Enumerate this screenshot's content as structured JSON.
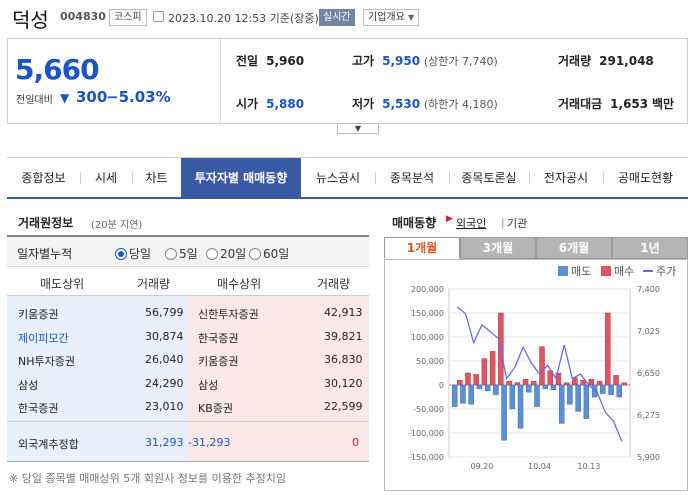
{
  "header": {
    "name": "덕성",
    "code": "004830",
    "market": "코스피",
    "datetime": "2023.10.20 12:53  기준(장중)",
    "realtime": "실시간",
    "summary": "기업개요"
  },
  "quote": {
    "price": "5,660",
    "change_label": "전일대비",
    "change": "300",
    "change_pct": "−5.03%",
    "prev_close": {
      "label": "전일",
      "value": "5,960"
    },
    "open": {
      "label": "시가",
      "value": "5,880"
    },
    "high": {
      "label": "고가",
      "value": "5,950",
      "limit": "(상한가 7,740)"
    },
    "low": {
      "label": "저가",
      "value": "5,530",
      "limit": "(하한가 4,180)"
    },
    "volume": {
      "label": "거래량",
      "value": "291,048"
    },
    "amount": {
      "label": "거래대금",
      "value": "1,653",
      "unit": "백만"
    }
  },
  "tabs": [
    "종합정보",
    "시세",
    "차트",
    "투자자별 매매동향",
    "뉴스공시",
    "종목분석",
    "종목토론실",
    "전자공시",
    "공매도현황"
  ],
  "broker": {
    "title": "거래원정보",
    "delay": "(20분 지연)",
    "cumulative_label": "일자별누적",
    "periods": [
      "당일",
      "5일",
      "20일",
      "60일"
    ],
    "selected_period": "당일",
    "headers": [
      "매도상위",
      "거래량",
      "매수상위",
      "거래량"
    ],
    "rows": [
      {
        "seller": "키움증권",
        "sell_vol": "56,799",
        "buyer": "신한투자증권",
        "buy_vol": "42,913"
      },
      {
        "seller": "제이피모간",
        "sell_vol": "30,874",
        "buyer": "한국증권",
        "buy_vol": "39,821"
      },
      {
        "seller": "NH투자증권",
        "sell_vol": "26,040",
        "buyer": "키움증권",
        "buy_vol": "36,830"
      },
      {
        "seller": "삼성",
        "sell_vol": "24,290",
        "buyer": "삼성",
        "buy_vol": "30,120"
      },
      {
        "seller": "한국증권",
        "sell_vol": "23,010",
        "buyer": "KB증권",
        "buy_vol": "22,599"
      }
    ],
    "foreign": {
      "label": "외국계추정합",
      "sell": "31,293",
      "net": "-31,293",
      "buy": "0"
    },
    "footnote": "※ 당일 종목별 매매상위 5개 회원사 정보를 이용한 추정치임"
  },
  "trading": {
    "title": "매매동향",
    "filters": [
      "외국인",
      "기관"
    ],
    "selected_filter": "외국인",
    "periods": [
      "1개월",
      "3개월",
      "6개월",
      "1년"
    ],
    "selected_period": "1개월",
    "legend": [
      "매도",
      "매수",
      "주가"
    ]
  },
  "colors": {
    "accent": "#3a5aa5",
    "down": "#1a55c8",
    "up": "#d8232a",
    "sell_bar": "#5b8fd6",
    "buy_bar": "#e0555f",
    "price_line": "#6b6bea"
  },
  "chart_data": {
    "type": "bar",
    "title": "",
    "x_ticks": [
      "09.20",
      "10.04",
      "10.13"
    ],
    "y_left": {
      "ticks": [
        "200,000",
        "150,000",
        "100,000",
        "50,000",
        "0",
        "-50,000",
        "-100,000",
        "-150,000"
      ],
      "range": [
        -150000,
        200000
      ]
    },
    "y_right": {
      "ticks": [
        "7,400",
        "7,025",
        "6,650",
        "6,275",
        "5,900"
      ],
      "range": [
        5900,
        7400
      ]
    },
    "series": [
      {
        "name": "매도",
        "values": [
          -45000,
          -38000,
          -40000,
          -8000,
          -12000,
          -20000,
          -115000,
          -50000,
          -90000,
          -15000,
          -45000,
          -8000,
          -10000,
          -80000,
          -40000,
          -55000,
          -70000,
          -25000,
          -18000,
          -20000,
          -25000
        ]
      },
      {
        "name": "매수",
        "values": [
          10000,
          25000,
          22000,
          55000,
          70000,
          150000,
          8000,
          5000,
          12000,
          8000,
          80000,
          30000,
          25000,
          5000,
          15000,
          10000,
          12000,
          8000,
          150000,
          20000,
          5000
        ]
      },
      {
        "name": "주가",
        "values": [
          7240,
          7180,
          6920,
          7080,
          7020,
          6960,
          6600,
          6700,
          6880,
          6740,
          6640,
          6720,
          6600,
          6900,
          6600,
          6640,
          6540,
          6480,
          6300,
          6220,
          6040
        ]
      }
    ]
  }
}
